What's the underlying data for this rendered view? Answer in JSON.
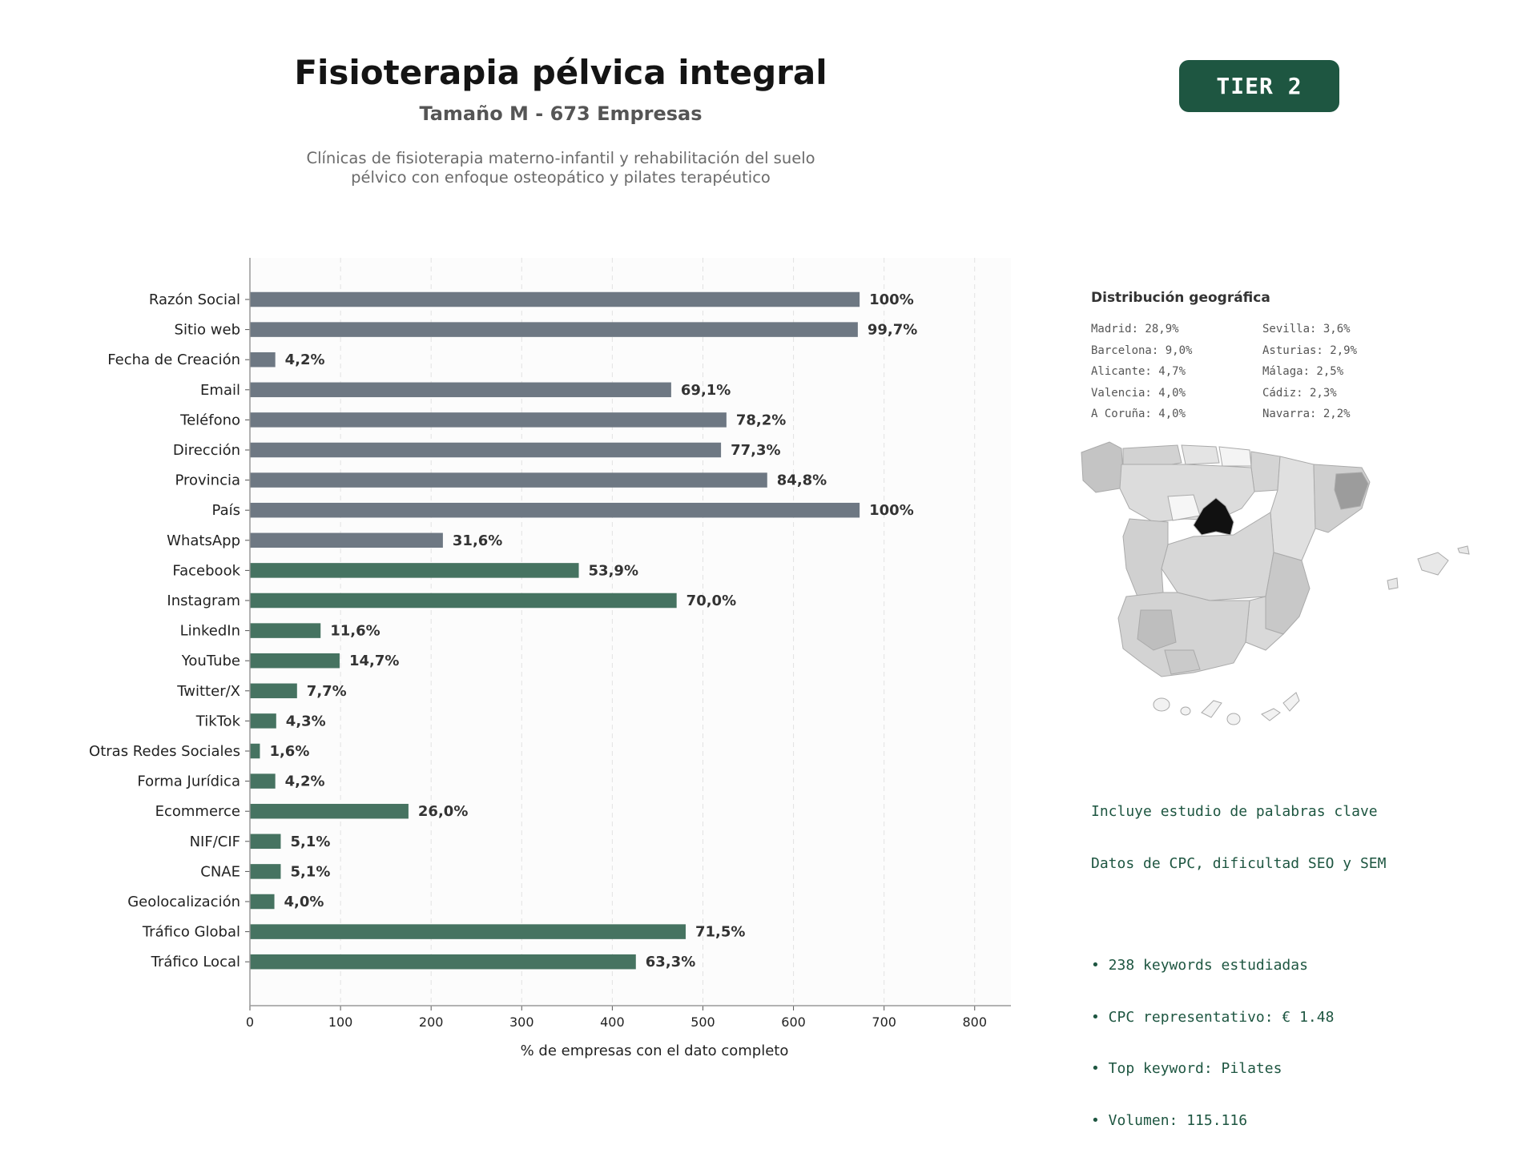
{
  "header": {
    "title": "Fisioterapia pélvica integral",
    "subtitle": "Tamaño M - 673 Empresas",
    "description_lines": [
      "Clínicas de fisioterapia materno-infantil y rehabilitación del suelo",
      "pélvico con enfoque osteopático y pilates terapéutico"
    ],
    "tier_badge": "TIER 2"
  },
  "colors": {
    "gray_bar": "#6e7883",
    "green_bar": "#467361",
    "accent_dark_green": "#1e5641",
    "madrid_fill": "#111111"
  },
  "chart_data": {
    "type": "bar",
    "orientation": "horizontal",
    "total_companies": 673,
    "xlabel": "% de empresas con el dato completo",
    "xlim": [
      0,
      840
    ],
    "xticks": [
      0,
      100,
      200,
      300,
      400,
      500,
      600,
      700,
      800
    ],
    "grid": "vertical dashed",
    "categories": [
      "Razón Social",
      "Sitio web",
      "Fecha de Creación",
      "Email",
      "Teléfono",
      "Dirección",
      "Provincia",
      "País",
      "WhatsApp",
      "Facebook",
      "Instagram",
      "LinkedIn",
      "YouTube",
      "Twitter/X",
      "TikTok",
      "Otras Redes Sociales",
      "Forma Jurídica",
      "Ecommerce",
      "NIF/CIF",
      "CNAE",
      "Geolocalización",
      "Tráfico Global",
      "Tráfico Local"
    ],
    "values": [
      673,
      671,
      28,
      465,
      526,
      520,
      571,
      673,
      213,
      363,
      471,
      78,
      99,
      52,
      29,
      11,
      28,
      175,
      34,
      34,
      27,
      481,
      426
    ],
    "data_labels": [
      "100%",
      "99,7%",
      "4,2%",
      "69,1%",
      "78,2%",
      "77,3%",
      "84,8%",
      "100%",
      "31,6%",
      "53,9%",
      "70,0%",
      "11,6%",
      "14,7%",
      "7,7%",
      "4,3%",
      "1,6%",
      "4,2%",
      "26,0%",
      "5,1%",
      "5,1%",
      "4,0%",
      "71,5%",
      "63,3%"
    ],
    "bar_groups": [
      "gray",
      "gray",
      "gray",
      "gray",
      "gray",
      "gray",
      "gray",
      "gray",
      "gray",
      "green",
      "green",
      "green",
      "green",
      "green",
      "green",
      "green",
      "green",
      "green",
      "green",
      "green",
      "green",
      "green",
      "green"
    ]
  },
  "geo": {
    "title": "Distribución geográfica",
    "items": [
      "Madrid: 28,9%",
      "Sevilla: 3,6%",
      "Barcelona: 9,0%",
      "Asturias: 2,9%",
      "Alicante: 4,7%",
      "Málaga: 2,5%",
      "Valencia: 4,0%",
      "Cádiz: 2,3%",
      "A Coruña: 4,0%",
      "Navarra: 2,2%"
    ]
  },
  "keywords": {
    "line1": "Incluye estudio de palabras clave",
    "line2": "Datos de CPC, dificultad SEO y SEM",
    "bullets": [
      "• 238 keywords estudiadas",
      "• CPC representativo: € 1.48",
      "• Top keyword: Pilates",
      "• Volumen: 115.116"
    ]
  }
}
